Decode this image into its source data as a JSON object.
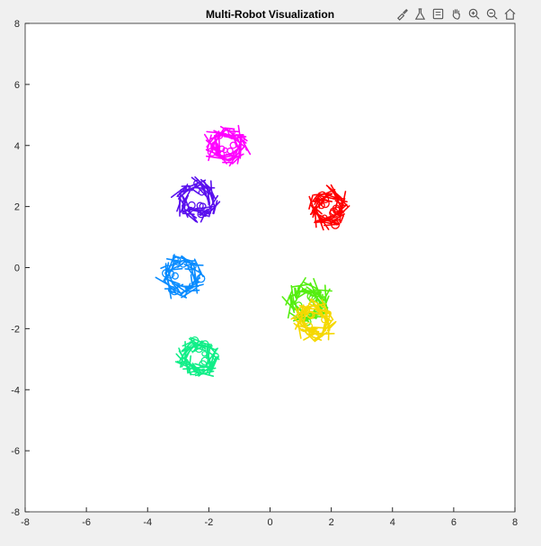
{
  "window": {
    "toolbar_icons": [
      "brush-icon",
      "flask-icon",
      "datatip-icon",
      "pan-hand-icon",
      "zoom-in-icon",
      "zoom-out-icon",
      "home-icon"
    ]
  },
  "colors": {
    "figure_bg": "#f0f0f0",
    "axes_bg": "#ffffff",
    "axis_color": "#262626",
    "toolbar_icon": "#555555"
  },
  "chart_data": {
    "type": "scatter",
    "title": "Multi-Robot Visualization",
    "xlabel": "",
    "ylabel": "",
    "xlim": [
      -8,
      8
    ],
    "ylim": [
      -8,
      8
    ],
    "x_ticks": [
      "-8",
      "-6",
      "-4",
      "-2",
      "0",
      "2",
      "4",
      "6",
      "8"
    ],
    "y_ticks": [
      "8",
      "6",
      "4",
      "2",
      "0",
      "-2",
      "-4",
      "-6",
      "-8"
    ],
    "grid": false,
    "legend": "none",
    "series": [
      {
        "color": "#ff00ff",
        "center": [
          -1.4,
          4.0
        ],
        "radius": 0.55
      },
      {
        "color": "#5a10ee",
        "center": [
          -2.4,
          2.2
        ],
        "radius": 0.6
      },
      {
        "color": "#ff0000",
        "center": [
          1.9,
          1.95
        ],
        "radius": 0.55
      },
      {
        "color": "#0a8cff",
        "center": [
          -2.9,
          -0.3
        ],
        "radius": 0.6
      },
      {
        "color": "#55ee11",
        "center": [
          1.25,
          -1.15
        ],
        "radius": 0.6
      },
      {
        "color": "#f5d800",
        "center": [
          1.45,
          -1.75
        ],
        "radius": 0.55
      },
      {
        "color": "#11ee88",
        "center": [
          -2.35,
          -2.95
        ],
        "radius": 0.55
      }
    ]
  }
}
